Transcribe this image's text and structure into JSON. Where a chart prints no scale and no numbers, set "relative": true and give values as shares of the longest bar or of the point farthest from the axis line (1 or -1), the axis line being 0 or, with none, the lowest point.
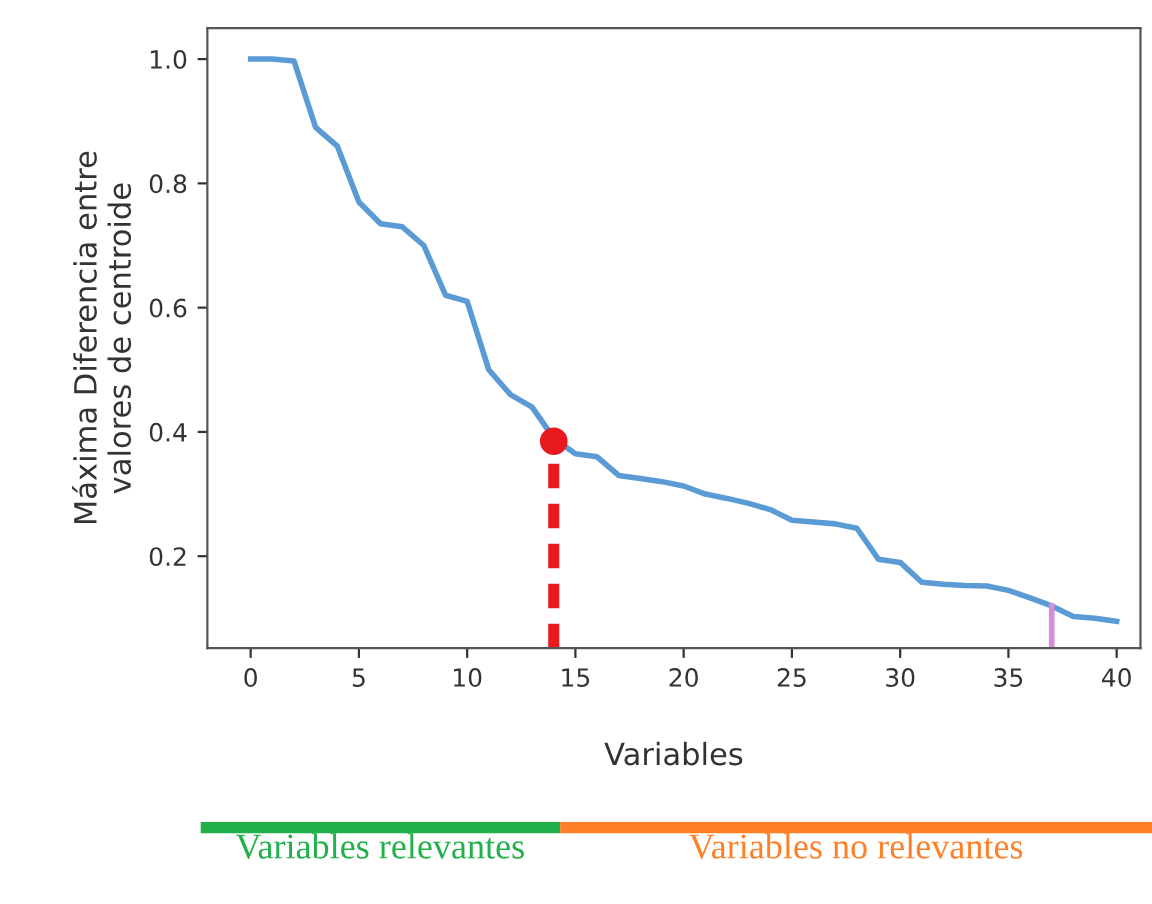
{
  "chart_data": [
    {
      "type": "line",
      "xlabel": "Variables",
      "ylabel": "Máxima Diferencia entre\nvalores de centroide",
      "series": [
        {
          "color": "#5b9bd5",
          "x": [
            0,
            1,
            2,
            3,
            4,
            5,
            6,
            7,
            8,
            9,
            10,
            11,
            12,
            13,
            14,
            15,
            16,
            17,
            18,
            19,
            20,
            21,
            22,
            23,
            24,
            25,
            26,
            27,
            28,
            29,
            30,
            31,
            32,
            33,
            34,
            35,
            36,
            37,
            38,
            39,
            40
          ],
          "values": [
            1.0,
            1.0,
            0.997,
            0.89,
            0.86,
            0.77,
            0.735,
            0.73,
            0.7,
            0.62,
            0.61,
            0.5,
            0.46,
            0.44,
            0.39,
            0.365,
            0.36,
            0.33,
            0.325,
            0.32,
            0.313,
            0.3,
            0.293,
            0.285,
            0.275,
            0.258,
            0.255,
            0.252,
            0.245,
            0.195,
            0.19,
            0.158,
            0.155,
            0.153,
            0.152,
            0.145,
            0.133,
            0.12,
            0.103,
            0.1,
            0.095
          ]
        },
        {
          "color": "#e8191f",
          "x": [
            14,
            14
          ],
          "values": [
            0.052,
            0.385
          ],
          "line_style": "dashed"
        },
        {
          "type": "scatter",
          "color": "#e8191f",
          "x": [
            14
          ],
          "values": [
            0.385
          ],
          "marker": "circle"
        },
        {
          "color": "#d98ad9",
          "x": [
            37,
            37
          ],
          "values": [
            0.052,
            0.12
          ]
        }
      ],
      "xlim": [
        -2,
        41.1
      ],
      "ylim": [
        0.052,
        1.05
      ],
      "xticks": [
        0,
        5,
        10,
        15,
        20,
        25,
        30,
        35,
        40
      ],
      "yticks": [
        0.2,
        0.4,
        0.6,
        0.8,
        {
          "value": 1.0,
          "label": "1.0"
        }
      ],
      "grid": false,
      "legend": false,
      "line_style": "solid",
      "marker": "none"
    },
    {
      "type": "bar",
      "orientation": "horizontal",
      "stacked": true,
      "relative": true,
      "categories": [
        null
      ],
      "series": [
        {
          "name": "Variables relevantes",
          "color": "#22b04b",
          "values": [
            0.378
          ]
        },
        {
          "name": "Variables no relevantes",
          "color": "#ff7f27",
          "values": [
            0.622
          ]
        }
      ]
    }
  ]
}
